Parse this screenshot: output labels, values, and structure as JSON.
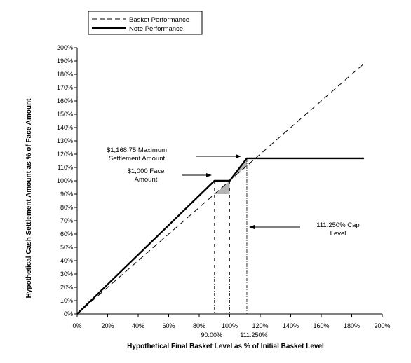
{
  "chart_data": {
    "type": "line",
    "xlabel": "Hypothetical Final Basket Level as % of Initial Basket Level",
    "ylabel": "Hypothetical Cash Settlement Amount as % of Face Amount",
    "xlim": [
      0,
      200
    ],
    "ylim": [
      0,
      200
    ],
    "x_ticks": [
      "0%",
      "20%",
      "40%",
      "60%",
      "80%",
      "100%",
      "120%",
      "140%",
      "160%",
      "180%",
      "200%"
    ],
    "x_tick_values": [
      0,
      20,
      40,
      60,
      80,
      100,
      120,
      140,
      160,
      180,
      200
    ],
    "x_sub_ticks": [
      "90.00%",
      "111.250%"
    ],
    "x_sub_tick_values": [
      90,
      111.25
    ],
    "y_ticks": [
      "0%",
      "10%",
      "20%",
      "30%",
      "40%",
      "50%",
      "60%",
      "70%",
      "80%",
      "90%",
      "100%",
      "110%",
      "120%",
      "130%",
      "140%",
      "150%",
      "160%",
      "170%",
      "180%",
      "190%",
      "200%"
    ],
    "y_tick_values": [
      0,
      10,
      20,
      30,
      40,
      50,
      60,
      70,
      80,
      90,
      100,
      110,
      120,
      130,
      140,
      150,
      160,
      170,
      180,
      190,
      200
    ],
    "legend": {
      "position": "top-left",
      "entries": [
        "Basket Performance",
        "Note Performance"
      ]
    },
    "series": [
      {
        "name": "Basket Performance",
        "style": "dashed",
        "color": "#000000",
        "x": [
          0,
          188
        ],
        "y": [
          0,
          188
        ]
      },
      {
        "name": "Note Performance",
        "style": "solid",
        "color": "#000000",
        "x": [
          0,
          90,
          100,
          111.25,
          188
        ],
        "y": [
          0,
          100,
          100,
          116.875,
          116.875
        ]
      }
    ],
    "shaded_regions": [
      {
        "color": "#b4b4b4",
        "x": [
          90,
          100,
          100
        ],
        "y": [
          90,
          100,
          90
        ]
      },
      {
        "color": "#b4b4b4",
        "x": [
          100,
          111.25,
          111.25
        ],
        "y": [
          100,
          111.25,
          116.875
        ]
      }
    ],
    "vertical_markers": [
      90,
      100,
      111.25
    ],
    "annotations": [
      {
        "lines": [
          "$1,168.75 Maximum",
          "Settlement Amount"
        ]
      },
      {
        "lines": [
          "$1,000 Face",
          "Amount"
        ]
      },
      {
        "lines": [
          "111.250% Cap",
          "Level"
        ]
      }
    ],
    "grid": false
  }
}
